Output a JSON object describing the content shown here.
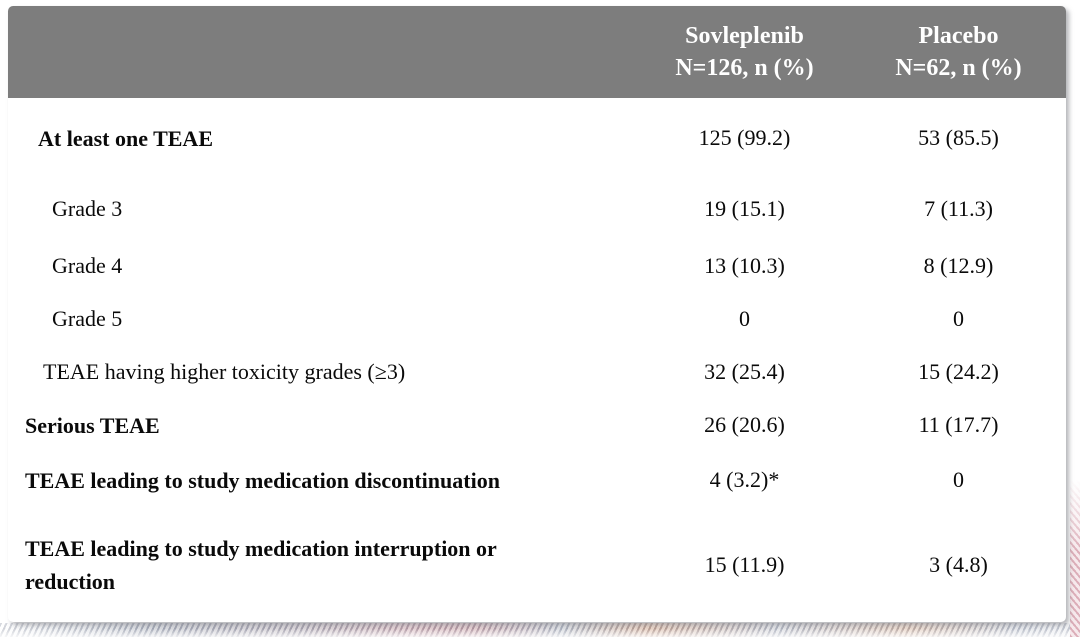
{
  "table": {
    "columns": [
      {
        "label": ""
      },
      {
        "line1": "Sovleplenib",
        "line2": "N=126, n (%)"
      },
      {
        "line1": "Placebo",
        "line2": "N=62, n (%)"
      }
    ],
    "rows": [
      {
        "label": "At least one TEAE",
        "sovleplenib": "125 (99.2)",
        "placebo": "53 (85.5)"
      },
      {
        "label": "Grade 3",
        "sovleplenib": "19 (15.1)",
        "placebo": "7 (11.3)"
      },
      {
        "label": "Grade 4",
        "sovleplenib": "13 (10.3)",
        "placebo": "8 (12.9)"
      },
      {
        "label": "Grade 5",
        "sovleplenib": "0",
        "placebo": "0"
      },
      {
        "label": "TEAE having higher toxicity grades (≥3)",
        "sovleplenib": "32 (25.4)",
        "placebo": "15 (24.2)"
      },
      {
        "label": "Serious TEAE",
        "sovleplenib": "26 (20.6)",
        "placebo": "11 (17.7)"
      },
      {
        "label": "TEAE leading to study medication discontinuation",
        "sovleplenib": "4 (3.2)*",
        "placebo": "0"
      },
      {
        "label": "TEAE leading to study medication interruption or reduction",
        "sovleplenib": "15 (11.9)",
        "placebo": "3 (4.8)"
      }
    ]
  },
  "colors": {
    "header_background": "#7d7d7d",
    "header_text": "#ffffff",
    "body_text": "#0a0a0a",
    "card_background": "#ffffff",
    "decor_gray_blue": "#aeb3bf",
    "decor_pink": "#c89ba3",
    "decor_orange": "#d2a184"
  }
}
